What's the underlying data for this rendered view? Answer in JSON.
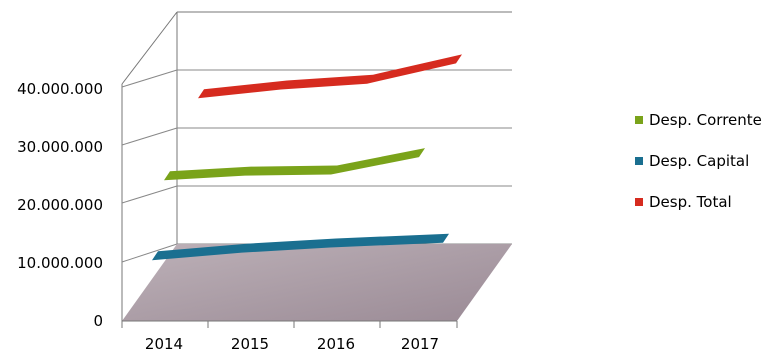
{
  "chart_data": {
    "type": "area",
    "style": "3d",
    "categories": [
      "2014",
      "2015",
      "2016",
      "2017"
    ],
    "series": [
      {
        "name": "Desp. Corrente",
        "color": "#7aa31a",
        "values": [
          26500000,
          27300000,
          27500000,
          30500000
        ]
      },
      {
        "name": "Desp. Capital",
        "color": "#1a6f90",
        "values": [
          11000000,
          12300000,
          13200000,
          14000000
        ]
      },
      {
        "name": "Desp. Total",
        "color": "#d62b1f",
        "values": [
          41000000,
          42500000,
          43500000,
          47000000
        ]
      }
    ],
    "yticks": [
      "0",
      "10.000.000",
      "20.000.000",
      "30.000.000",
      "40.000.000"
    ],
    "ylim": [
      0,
      40000000
    ],
    "grid": true,
    "legend_position": "right",
    "floor_color": "#a99aa3"
  }
}
